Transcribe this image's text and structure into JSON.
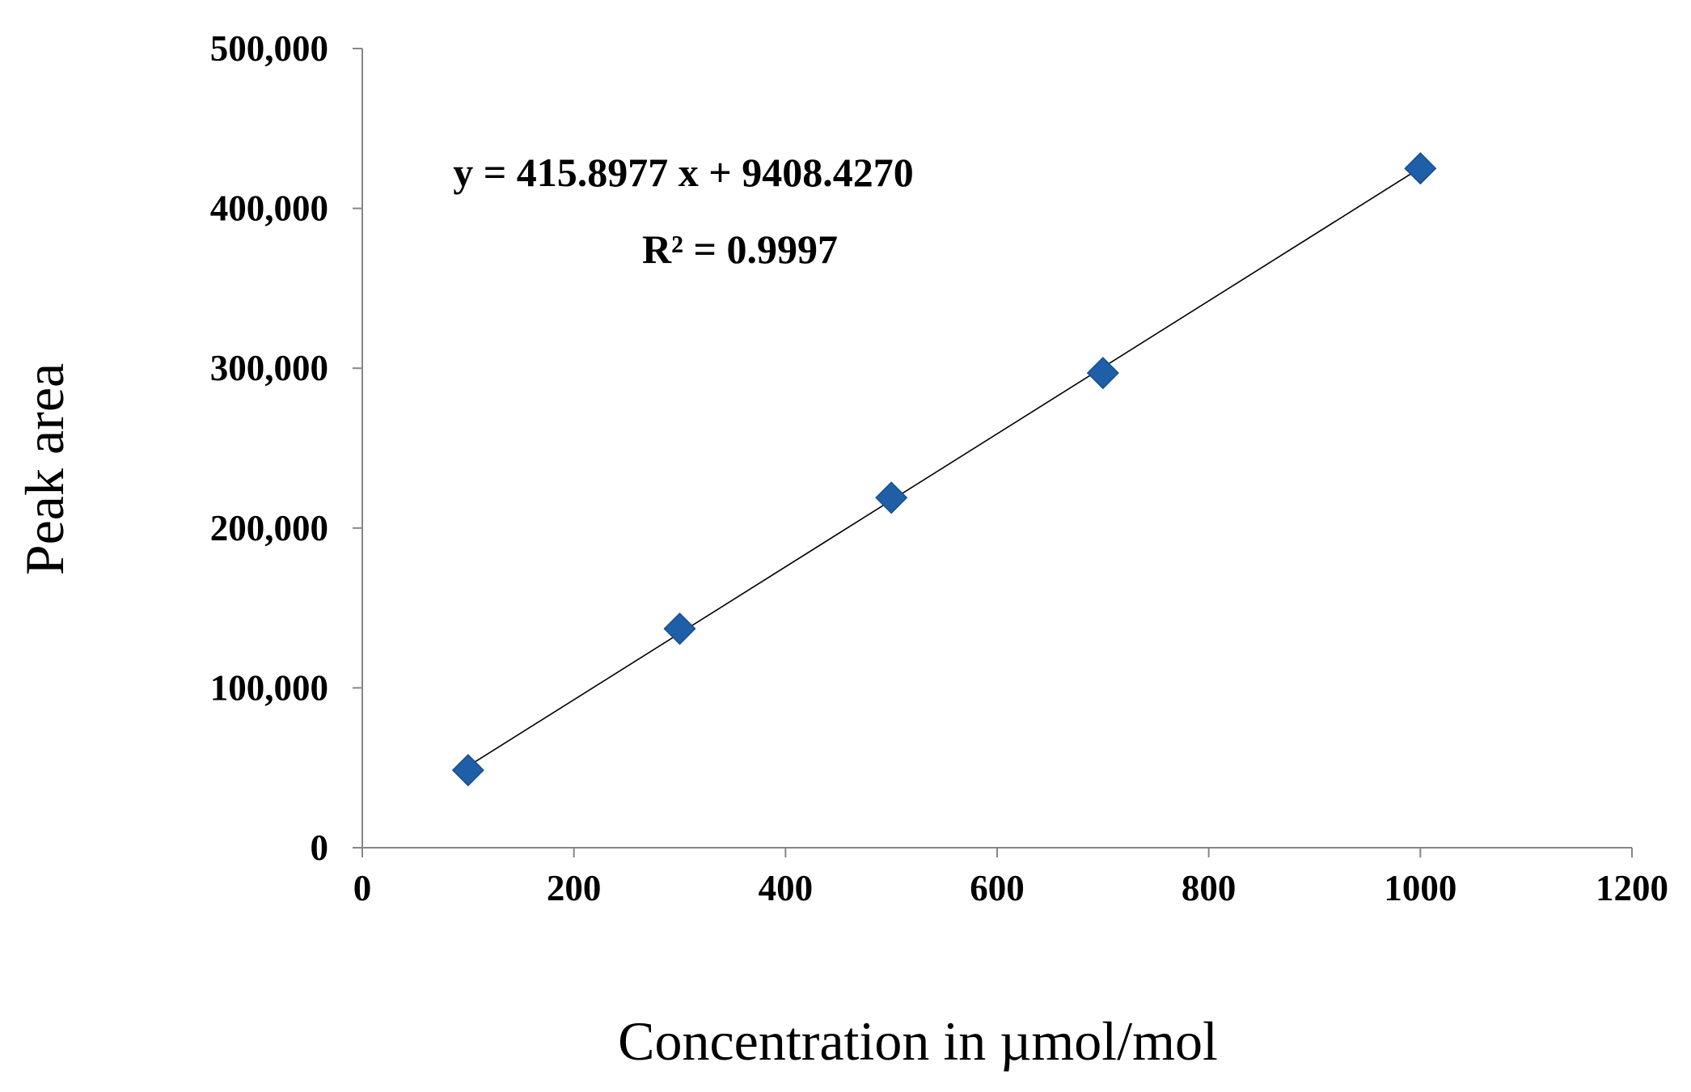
{
  "chart_data": {
    "type": "scatter",
    "title": "",
    "xlabel": "Concentration  in µmol/mol",
    "ylabel": "Peak area",
    "xlim": [
      0,
      1200
    ],
    "ylim": [
      0,
      500000
    ],
    "x_ticks": [
      "0",
      "200",
      "400",
      "600",
      "800",
      "1000",
      "1200"
    ],
    "y_ticks": [
      "0",
      "100,000",
      "200,000",
      "300,000",
      "400,000",
      "500,000"
    ],
    "grid": false,
    "legend": "none",
    "marker": "diamond",
    "marker_color": "#1f5fa8",
    "series": [
      {
        "x": [
          100,
          300,
          500,
          700,
          1000
        ],
        "y": [
          48500,
          137000,
          219000,
          297000,
          425000
        ]
      }
    ],
    "trendline": {
      "type": "linear",
      "slope": 415.8977,
      "intercept": 9408.427,
      "color": "#000000"
    },
    "annotations": {
      "equation": "y = 415.8977 x + 9408.4270",
      "r_squared": "R² = 0.9997"
    }
  }
}
